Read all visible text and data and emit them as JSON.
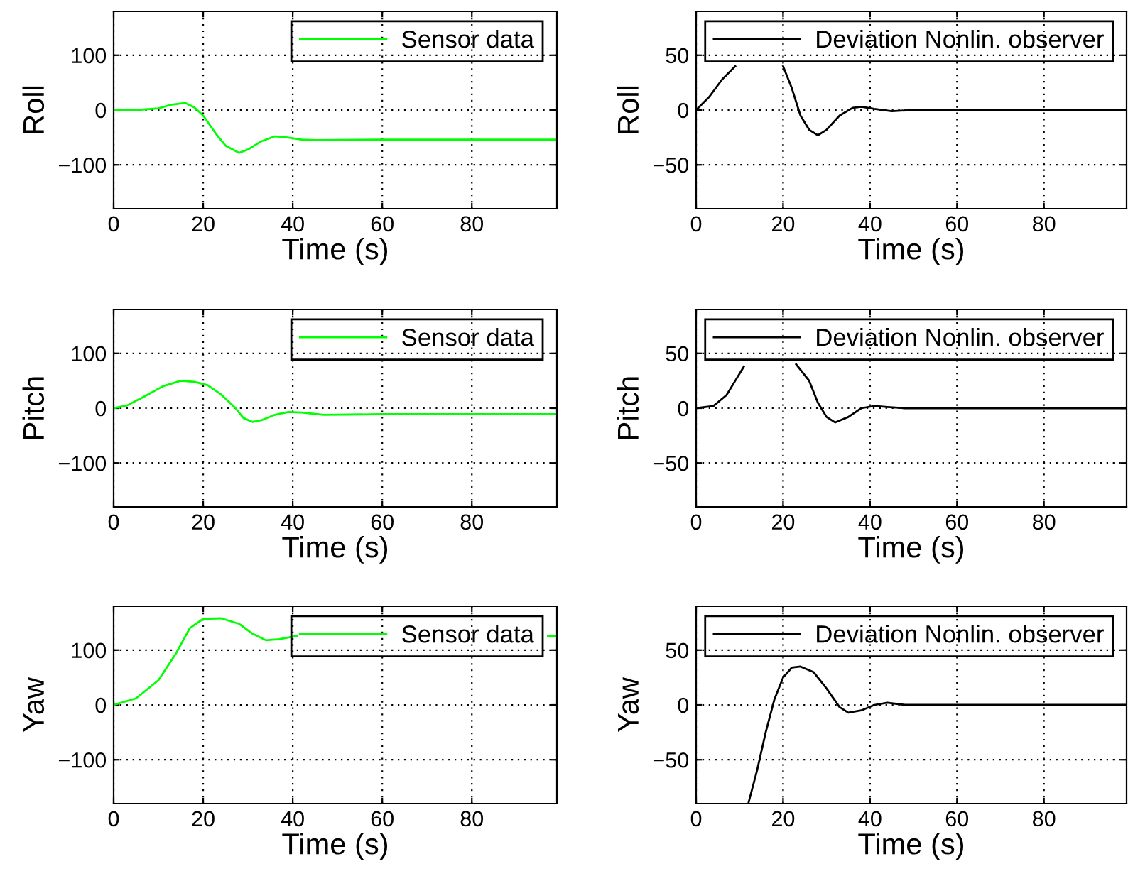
{
  "chart_data": [
    {
      "type": "line",
      "xlabel": "Time (s)",
      "ylabel": "Roll",
      "xlim": [
        0,
        99
      ],
      "ylim": [
        -180,
        180
      ],
      "xticks": [
        0,
        20,
        40,
        60,
        80
      ],
      "yticks": [
        -100,
        0,
        100
      ],
      "grid": true,
      "legend": "top right",
      "series": [
        {
          "name": "Sensor data",
          "color": "#00ff00",
          "x": [
            0,
            5,
            10,
            13,
            16,
            18,
            20,
            23,
            25,
            28,
            30,
            33,
            36,
            38,
            42,
            45,
            60,
            80,
            99
          ],
          "values": [
            0,
            0,
            3,
            10,
            13,
            5,
            -10,
            -45,
            -65,
            -78,
            -72,
            -57,
            -48,
            -49,
            -54,
            -55,
            -54,
            -54,
            -54
          ]
        }
      ]
    },
    {
      "type": "line",
      "xlabel": "Time (s)",
      "ylabel": "Roll",
      "xlim": [
        0,
        99
      ],
      "ylim": [
        -90,
        90
      ],
      "xticks": [
        0,
        20,
        40,
        60,
        80
      ],
      "yticks": [
        -50,
        0,
        50
      ],
      "grid": true,
      "legend": "top right",
      "series": [
        {
          "name": "Deviation Nonlin. observer",
          "color": "#000000",
          "x": [
            0,
            3,
            6,
            9,
            12,
            15,
            18,
            20,
            22,
            24,
            26,
            28,
            30,
            33,
            36,
            38,
            41,
            45,
            50,
            99
          ],
          "values": [
            0,
            12,
            28,
            40,
            null,
            null,
            null,
            40,
            20,
            -5,
            -18,
            -23,
            -18,
            -5,
            2,
            3,
            1,
            -1,
            0,
            0
          ]
        }
      ]
    },
    {
      "type": "line",
      "xlabel": "Time (s)",
      "ylabel": "Pitch",
      "xlim": [
        0,
        99
      ],
      "ylim": [
        -180,
        180
      ],
      "xticks": [
        0,
        20,
        40,
        60,
        80
      ],
      "yticks": [
        -100,
        0,
        100
      ],
      "grid": true,
      "legend": "top right",
      "series": [
        {
          "name": "Sensor data",
          "color": "#00ff00",
          "x": [
            0,
            3,
            7,
            11,
            15,
            18,
            21,
            24,
            27,
            29,
            31,
            33,
            36,
            39,
            42,
            47,
            60,
            99
          ],
          "values": [
            0,
            5,
            22,
            40,
            50,
            48,
            42,
            25,
            2,
            -18,
            -25,
            -22,
            -12,
            -7,
            -8,
            -12,
            -11,
            -11
          ]
        }
      ]
    },
    {
      "type": "line",
      "xlabel": "Time (s)",
      "ylabel": "Pitch",
      "xlim": [
        0,
        99
      ],
      "ylim": [
        -90,
        90
      ],
      "xticks": [
        0,
        20,
        40,
        60,
        80
      ],
      "yticks": [
        -50,
        0,
        50
      ],
      "grid": true,
      "legend": "top right",
      "series": [
        {
          "name": "Deviation Nonlin. observer",
          "color": "#000000",
          "x": [
            0,
            4,
            7,
            9,
            11,
            15,
            20,
            23,
            26,
            28,
            30,
            32,
            35,
            38,
            41,
            44,
            48,
            99
          ],
          "values": [
            0,
            2,
            12,
            25,
            38,
            null,
            null,
            40,
            25,
            5,
            -8,
            -13,
            -8,
            0,
            2,
            1,
            0,
            0
          ]
        }
      ]
    },
    {
      "type": "line",
      "xlabel": "Time (s)",
      "ylabel": "Yaw",
      "xlim": [
        0,
        99
      ],
      "ylim": [
        -180,
        180
      ],
      "xticks": [
        0,
        20,
        40,
        60,
        80
      ],
      "yticks": [
        -100,
        0,
        100
      ],
      "grid": true,
      "legend": "top right",
      "series": [
        {
          "name": "Sensor data",
          "color": "#00ff00",
          "x": [
            0,
            5,
            10,
            14,
            17,
            20,
            24,
            28,
            31,
            34,
            37,
            41,
            45,
            70,
            95,
            97,
            99
          ],
          "values": [
            0,
            12,
            45,
            95,
            140,
            157,
            158,
            148,
            130,
            118,
            120,
            126,
            null,
            null,
            null,
            125,
            125
          ]
        }
      ]
    },
    {
      "type": "line",
      "xlabel": "Time (s)",
      "ylabel": "Yaw",
      "xlim": [
        0,
        99
      ],
      "ylim": [
        -90,
        90
      ],
      "xticks": [
        0,
        20,
        40,
        60,
        80
      ],
      "yticks": [
        -50,
        0,
        50
      ],
      "grid": true,
      "legend": "top right",
      "series": [
        {
          "name": "Deviation Nonlin. observer",
          "color": "#000000",
          "x": [
            12,
            14,
            16,
            18,
            20,
            22,
            24,
            27,
            30,
            33,
            35,
            38,
            41,
            44,
            48,
            99
          ],
          "values": [
            -90,
            -60,
            -25,
            5,
            25,
            34,
            35,
            30,
            15,
            -2,
            -7,
            -5,
            0,
            2,
            0,
            0
          ]
        }
      ]
    }
  ]
}
